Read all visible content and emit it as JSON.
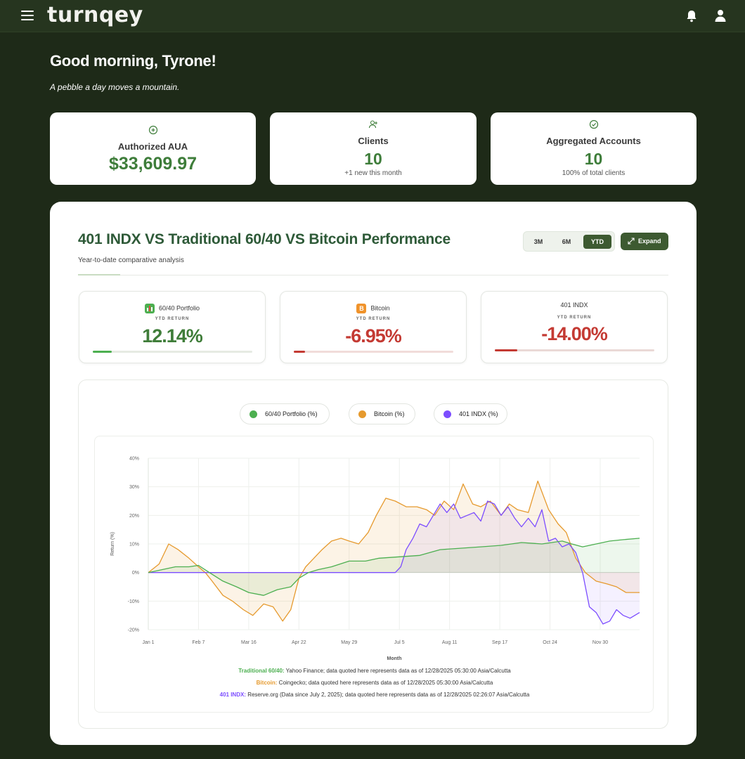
{
  "app": {
    "logo": "turnqey"
  },
  "greeting": "Good morning, Tyrone!",
  "quote": "A pebble a day moves a mountain.",
  "stats": [
    {
      "label": "Authorized AUA",
      "value": "$33,609.97",
      "sub": ""
    },
    {
      "label": "Clients",
      "value": "10",
      "sub": "+1 new this month"
    },
    {
      "label": "Aggregated Accounts",
      "value": "10",
      "sub": "100% of total clients"
    }
  ],
  "panel": {
    "title": "401 INDX VS Traditional 60/40 VS Bitcoin Performance",
    "subtitle": "Year-to-date comparative analysis",
    "ranges": [
      "3M",
      "6M",
      "YTD"
    ],
    "active_range": "YTD",
    "expand_label": "Expand"
  },
  "metrics": [
    {
      "name": "60/40 Portfolio",
      "ytd_label": "YTD RETURN",
      "value": "12.14%",
      "color": "#3f7d39",
      "progress": 0.12
    },
    {
      "name": "Bitcoin",
      "ytd_label": "YTD RETURN",
      "value": "-6.95%",
      "color": "#c43a33",
      "progress": 0.07
    },
    {
      "name": "401 INDX",
      "ytd_label": "YTD RETURN",
      "value": "-14.00%",
      "color": "#c43a33",
      "progress": 0.14
    }
  ],
  "legend": [
    "60/40 Portfolio (%)",
    "Bitcoin (%)",
    "401 INDX (%)"
  ],
  "sources": [
    {
      "name": "Traditional 60/40:",
      "text": " Yahoo Finance; data quoted here represents data as of 12/28/2025 05:30:00 Asia/Calcutta",
      "color": "#4caf50"
    },
    {
      "name": "Bitcoin:",
      "text": " Coingecko; data quoted here represents data as of 12/28/2025 05:30:00 Asia/Calcutta",
      "color": "#e69a2e"
    },
    {
      "name": "401 INDX:",
      "text": " Reserve.org (Data since July 2, 2025); data quoted here represents data as of 12/28/2025 02:26:07 Asia/Calcutta",
      "color": "#7c4dff"
    }
  ],
  "chart_data": {
    "type": "line",
    "title": "",
    "xlabel": "Month",
    "ylabel": "Return (%)",
    "ylim": [
      -20,
      40
    ],
    "yticks": [
      "-20%",
      "-10%",
      "0%",
      "10%",
      "20%",
      "30%",
      "40%"
    ],
    "x_ticks": [
      "Jan 1",
      "Feb 7",
      "Mar 16",
      "Apr 22",
      "May 29",
      "Jul 5",
      "Aug 11",
      "Sep 17",
      "Oct 24",
      "Nov 30"
    ],
    "x_range_days": [
      0,
      362
    ],
    "grid": true,
    "legend_position": "top-center",
    "series": [
      {
        "name": "60/40 Portfolio (%)",
        "color": "#4caf50",
        "days": [
          0,
          10,
          20,
          30,
          37,
          45,
          55,
          65,
          74,
          85,
          95,
          105,
          111,
          118,
          125,
          135,
          148,
          160,
          170,
          185,
          200,
          215,
          230,
          245,
          260,
          275,
          290,
          305,
          312,
          320,
          330,
          340,
          350,
          362
        ],
        "values": [
          0,
          1,
          2,
          2,
          2.5,
          0,
          -3,
          -5,
          -7,
          -8,
          -6,
          -5,
          -2,
          0,
          1,
          2,
          4,
          4,
          5,
          5.5,
          6,
          8,
          8.5,
          9,
          9.5,
          10.5,
          10,
          11,
          10,
          9,
          10,
          11,
          11.5,
          12
        ]
      },
      {
        "name": "Bitcoin (%)",
        "color": "#e69a2e",
        "days": [
          0,
          8,
          15,
          22,
          30,
          37,
          42,
          47,
          55,
          62,
          70,
          77,
          85,
          92,
          99,
          105,
          111,
          116,
          122,
          128,
          135,
          142,
          148,
          155,
          162,
          168,
          175,
          182,
          190,
          198,
          205,
          211,
          218,
          225,
          232,
          239,
          245,
          252,
          260,
          266,
          272,
          280,
          287,
          295,
          302,
          308,
          315,
          322,
          330,
          338,
          345,
          352,
          362
        ],
        "values": [
          0,
          3,
          10,
          8,
          5,
          2,
          0,
          -3,
          -8,
          -10,
          -13,
          -15,
          -11,
          -12,
          -17,
          -13,
          -2,
          2,
          5,
          8,
          11,
          12,
          11,
          10,
          14,
          20,
          26,
          25,
          23,
          23,
          22,
          20,
          25,
          22,
          31,
          24,
          23,
          25,
          20,
          24,
          22,
          21,
          32,
          22,
          17,
          14,
          5,
          0,
          -3,
          -4,
          -5,
          -7,
          -7
        ]
      },
      {
        "name": "401 INDX (%)",
        "color": "#7c4dff",
        "days": [
          0,
          182,
          186,
          190,
          195,
          200,
          205,
          210,
          215,
          220,
          225,
          230,
          235,
          240,
          245,
          250,
          255,
          260,
          265,
          270,
          275,
          280,
          285,
          290,
          295,
          300,
          305,
          310,
          315,
          320,
          325,
          330,
          335,
          340,
          345,
          350,
          355,
          362
        ],
        "values": [
          0,
          0,
          2,
          8,
          12,
          17,
          16,
          20,
          24,
          21,
          24,
          19,
          20,
          21,
          18,
          25,
          24,
          20,
          23,
          19,
          16,
          19,
          16,
          22,
          11,
          12,
          9,
          10,
          7,
          0,
          -12,
          -14,
          -18,
          -17,
          -13,
          -15,
          -16,
          -14
        ]
      }
    ]
  }
}
